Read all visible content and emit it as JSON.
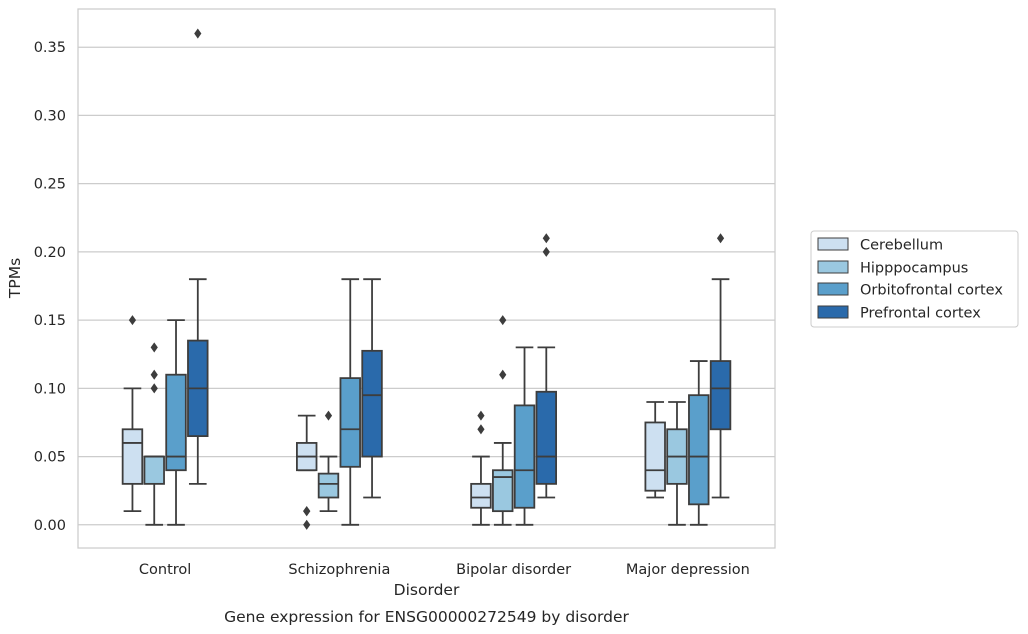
{
  "chart_data": {
    "type": "box",
    "title": "",
    "caption": "Gene expression for ENSG00000272549 by disorder",
    "xlabel": "Disorder",
    "ylabel": "TPMs",
    "ylim": [
      -0.017,
      0.378
    ],
    "yticks": [
      "0.00",
      "0.05",
      "0.10",
      "0.15",
      "0.20",
      "0.25",
      "0.30",
      "0.35"
    ],
    "ytick_values": [
      0,
      0.05,
      0.1,
      0.15,
      0.2,
      0.25,
      0.3,
      0.35
    ],
    "grid": "horizontal",
    "legend_position": "outside-right",
    "categories": [
      "Control",
      "Schizophrenia",
      "Bipolar disorder",
      "Major depression"
    ],
    "series": [
      {
        "name": "Cerebellum",
        "color": "#cde0f1",
        "boxes": [
          {
            "whislo": 0.01,
            "q1": 0.03,
            "med": 0.06,
            "q3": 0.07,
            "whishi": 0.1,
            "fliers": [
              0.15
            ]
          },
          {
            "whislo": 0.04,
            "q1": 0.04,
            "med": 0.05,
            "q3": 0.06,
            "whishi": 0.08,
            "fliers": [
              0.0,
              0.01,
              0.01
            ]
          },
          {
            "whislo": 0.0,
            "q1": 0.0125,
            "med": 0.02,
            "q3": 0.03,
            "whishi": 0.05,
            "fliers": [
              0.07,
              0.08
            ]
          },
          {
            "whislo": 0.02,
            "q1": 0.025,
            "med": 0.04,
            "q3": 0.075,
            "whishi": 0.09,
            "fliers": []
          }
        ]
      },
      {
        "name": "Hipppocampus",
        "color": "#9ac8e0",
        "boxes": [
          {
            "whislo": 0.0,
            "q1": 0.03,
            "med": 0.05,
            "q3": 0.05,
            "whishi": 0.05,
            "fliers": [
              0.1,
              0.11,
              0.13
            ]
          },
          {
            "whislo": 0.01,
            "q1": 0.02,
            "med": 0.03,
            "q3": 0.0375,
            "whishi": 0.05,
            "fliers": [
              0.08
            ]
          },
          {
            "whislo": 0.0,
            "q1": 0.01,
            "med": 0.035,
            "q3": 0.04,
            "whishi": 0.06,
            "fliers": [
              0.11,
              0.15
            ]
          },
          {
            "whislo": 0.0,
            "q1": 0.03,
            "med": 0.05,
            "q3": 0.07,
            "whishi": 0.09,
            "fliers": []
          }
        ]
      },
      {
        "name": "Orbitofrontal cortex",
        "color": "#5a9fcb",
        "boxes": [
          {
            "whislo": 0.0,
            "q1": 0.04,
            "med": 0.05,
            "q3": 0.11,
            "whishi": 0.15,
            "fliers": []
          },
          {
            "whislo": 0.0,
            "q1": 0.0425,
            "med": 0.07,
            "q3": 0.1075,
            "whishi": 0.18,
            "fliers": []
          },
          {
            "whislo": 0.0,
            "q1": 0.0125,
            "med": 0.04,
            "q3": 0.0875,
            "whishi": 0.13,
            "fliers": []
          },
          {
            "whislo": 0.0,
            "q1": 0.015,
            "med": 0.05,
            "q3": 0.095,
            "whishi": 0.12,
            "fliers": []
          }
        ]
      },
      {
        "name": "Prefrontal cortex",
        "color": "#2a6aab",
        "boxes": [
          {
            "whislo": 0.03,
            "q1": 0.065,
            "med": 0.1,
            "q3": 0.135,
            "whishi": 0.18,
            "fliers": [
              0.36
            ]
          },
          {
            "whislo": 0.02,
            "q1": 0.05,
            "med": 0.095,
            "q3": 0.1275,
            "whishi": 0.18,
            "fliers": []
          },
          {
            "whislo": 0.02,
            "q1": 0.03,
            "med": 0.05,
            "q3": 0.0975,
            "whishi": 0.13,
            "fliers": [
              0.2,
              0.21
            ]
          },
          {
            "whislo": 0.02,
            "q1": 0.07,
            "med": 0.1,
            "q3": 0.12,
            "whishi": 0.18,
            "fliers": [
              0.21
            ]
          }
        ]
      }
    ]
  }
}
